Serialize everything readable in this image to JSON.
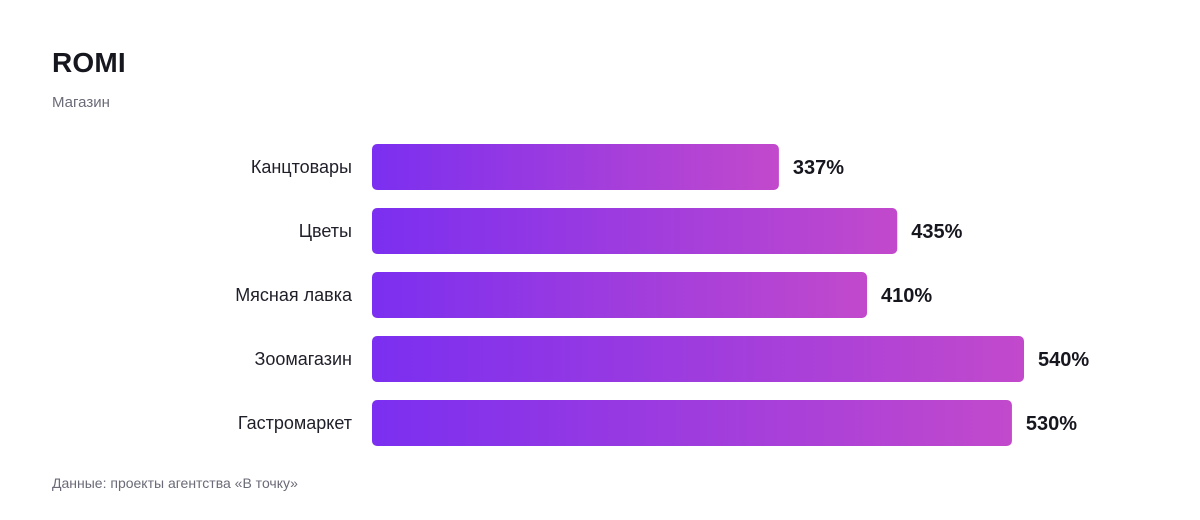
{
  "header": {
    "title": "ROMI",
    "subtitle": "Магазин"
  },
  "footer": {
    "source": "Данные: проекты агентства «В точку»"
  },
  "chart_data": {
    "type": "bar",
    "orientation": "horizontal",
    "title": "ROMI",
    "subtitle": "Магазин",
    "categories": [
      "Канцтовары",
      "Цветы",
      "Мясная лавка",
      "Зоомагазин",
      "Гастромаркет"
    ],
    "values": [
      337,
      435,
      410,
      540,
      530
    ],
    "data_labels": [
      "337%",
      "435%",
      "410%",
      "540%",
      "530%"
    ],
    "unit": "%",
    "xlim": [
      0,
      540
    ],
    "grid": false,
    "legend": "none",
    "colors": {
      "gradient_start": "#7b2ff0",
      "gradient_end": "#c249cc",
      "label": "#16161f"
    }
  }
}
